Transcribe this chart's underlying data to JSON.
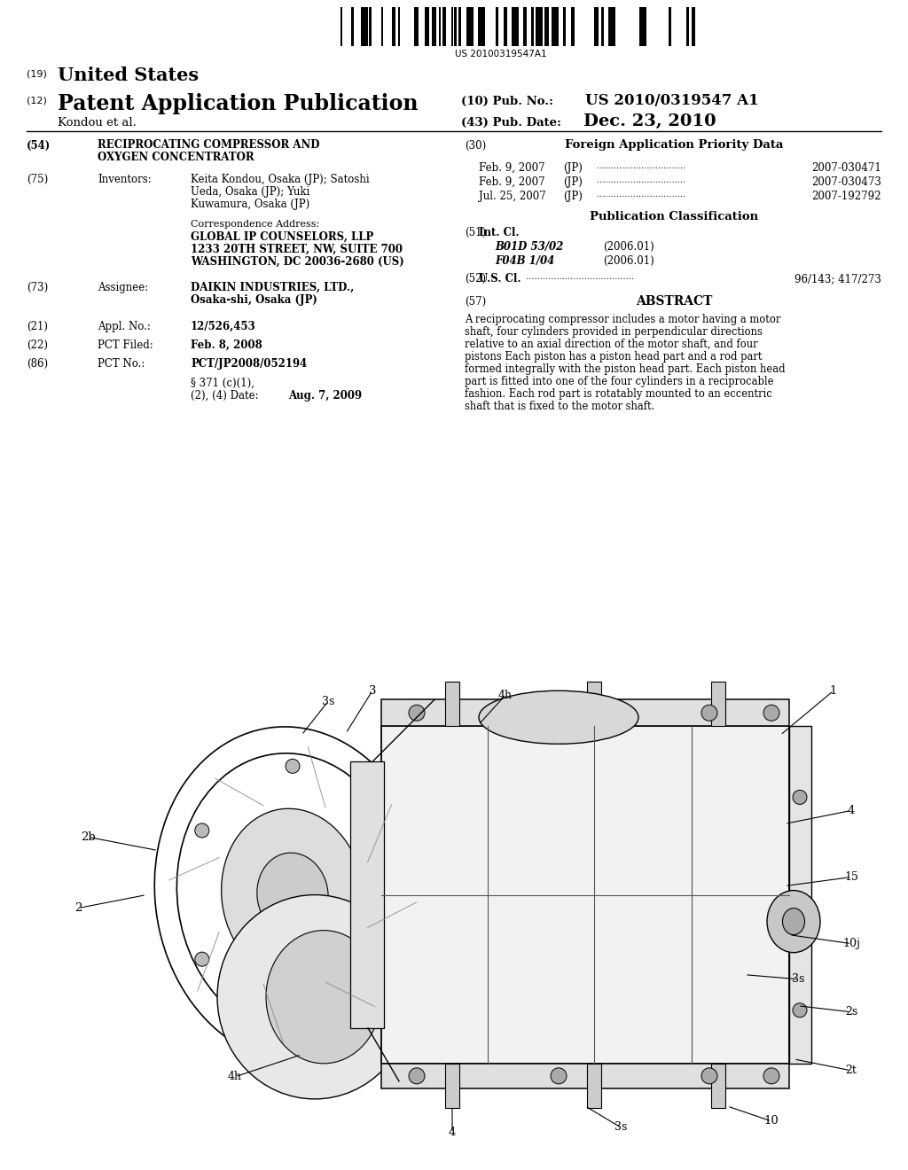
{
  "background_color": "#ffffff",
  "barcode_text": "US 20100319547A1",
  "header_19": "(19)",
  "header_19_text": "United States",
  "header_12": "(12)",
  "header_12_text": "Patent Application Publication",
  "header_10_label": "(10) Pub. No.:",
  "header_10_value": "US 2010/0319547 A1",
  "header_43_label": "(43) Pub. Date:",
  "header_43_value": "Dec. 23, 2010",
  "inventor_line": "Kondou et al.",
  "section_54_num": "(54)",
  "section_54_line1": "RECIPROCATING COMPRESSOR AND",
  "section_54_line2": "OXYGEN CONCENTRATOR",
  "section_75_num": "(75)",
  "section_75_label": "Inventors:",
  "section_75_line1": "Keita Kondou, Osaka (JP); Satoshi",
  "section_75_line2": "Ueda, Osaka (JP); Yuki",
  "section_75_line3": "Kuwamura, Osaka (JP)",
  "corr_label": "Correspondence Address:",
  "corr_line1": "GLOBAL IP COUNSELORS, LLP",
  "corr_line2": "1233 20TH STREET, NW, SUITE 700",
  "corr_line3": "WASHINGTON, DC 20036-2680 (US)",
  "section_73_num": "(73)",
  "section_73_label": "Assignee:",
  "section_73_line1": "DAIKIN INDUSTRIES, LTD.,",
  "section_73_line2": "Osaka-shi, Osaka (JP)",
  "section_21_num": "(21)",
  "section_21_label": "Appl. No.:",
  "section_21_value": "12/526,453",
  "section_22_num": "(22)",
  "section_22_label": "PCT Filed:",
  "section_22_value": "Feb. 8, 2008",
  "section_86_num": "(86)",
  "section_86_label": "PCT No.:",
  "section_86_value": "PCT/JP2008/052194",
  "section_371_line1": "§ 371 (c)(1),",
  "section_371_line2": "(2), (4) Date:",
  "section_371_value": "Aug. 7, 2009",
  "section_30_num": "(30)",
  "section_30_title": "Foreign Application Priority Data",
  "priority_data": [
    {
      "date": "Feb. 9, 2007",
      "country": "(JP)",
      "number": "2007-030471"
    },
    {
      "date": "Feb. 9, 2007",
      "country": "(JP)",
      "number": "2007-030473"
    },
    {
      "date": "Jul. 25, 2007",
      "country": "(JP)",
      "number": "2007-192792"
    }
  ],
  "pub_class_title": "Publication Classification",
  "section_51_num": "(51)",
  "section_51_label": "Int. Cl.",
  "class_entries": [
    {
      "code": "B01D 53/02",
      "year": "(2006.01)"
    },
    {
      "code": "F04B 1/04",
      "year": "(2006.01)"
    }
  ],
  "section_52_num": "(52)",
  "section_52_label": "U.S. Cl.",
  "section_52_value": "96/143; 417/273",
  "section_57_num": "(57)",
  "section_57_title": "ABSTRACT",
  "abstract_lines": [
    "A reciprocating compressor includes a motor having a motor",
    "shaft, four cylinders provided in perpendicular directions",
    "relative to an axial direction of the motor shaft, and four",
    "pistons Each piston has a piston head part and a rod part",
    "formed integrally with the piston head part. Each piston head",
    "part is fitted into one of the four cylinders in a reciprocable",
    "fashion. Each rod part is rotatably mounted to an eccentric",
    "shaft that is fixed to the motor shaft."
  ]
}
